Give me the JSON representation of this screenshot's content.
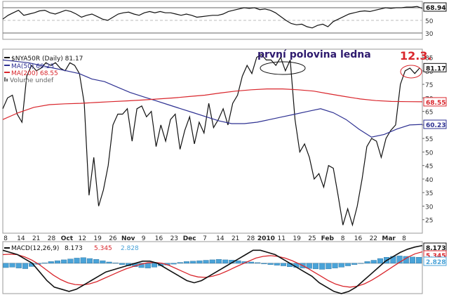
{
  "chart_data": [
    {
      "panel": "rsi",
      "type": "line",
      "last_value": "68.94",
      "y_ticks": [
        70,
        50,
        30
      ],
      "ylim": [
        20,
        80
      ],
      "series": [
        {
          "color": "#111111",
          "values": [
            52,
            58,
            62,
            66,
            58,
            60,
            62,
            65,
            66,
            62,
            60,
            63,
            66,
            64,
            60,
            55,
            58,
            60,
            56,
            52,
            50,
            55,
            60,
            62,
            63,
            60,
            58,
            62,
            64,
            62,
            64,
            62,
            62,
            60,
            58,
            60,
            58,
            55,
            56,
            57,
            58,
            58,
            60,
            64,
            66,
            68,
            70,
            69,
            70,
            67,
            68,
            66,
            62,
            56,
            50,
            45,
            43,
            44,
            40,
            38,
            42,
            44,
            40,
            48,
            52,
            56,
            60,
            62,
            64,
            65,
            64,
            66,
            68,
            70,
            69,
            70,
            70,
            71,
            71,
            72,
            69
          ]
        }
      ]
    },
    {
      "panel": "price",
      "type": "line",
      "legend": [
        {
          "label": "$NYA50R (Daily) 81.17",
          "color": "#111111"
        },
        {
          "label": "MA(50) 60.23",
          "color": "#2e3192"
        },
        {
          "label": "MA(200) 68.55",
          "color": "#d9262c"
        },
        {
          "label": "Volume undef",
          "color": "#666666"
        }
      ],
      "ylim": [
        20,
        88
      ],
      "y_ticks": [
        85,
        80,
        75,
        70,
        65,
        60,
        55,
        50,
        45,
        40,
        35,
        30,
        25
      ],
      "x_ticks": [
        "8",
        "14",
        "21",
        "28",
        "Oct",
        "12",
        "19",
        "26",
        "Nov",
        "9",
        "16",
        "23",
        "Dec",
        "7",
        "14",
        "21",
        "28",
        "2010",
        "11",
        "19",
        "25",
        "Feb",
        "8",
        "16",
        "22",
        "Mar",
        "8"
      ],
      "price_tags": [
        {
          "text": "81.17",
          "value": 81.17,
          "color": "#111111",
          "fill": "#ffffff"
        },
        {
          "text": "68.55",
          "value": 68.55,
          "color": "#d9262c",
          "fill": "#ffffff"
        },
        {
          "text": "60.23",
          "value": 60.23,
          "color": "#2e3192",
          "fill": "#ffffff"
        }
      ],
      "series": [
        {
          "name": "$NYA50R",
          "color": "#111111",
          "values": [
            66,
            70,
            71,
            64,
            61,
            78,
            82,
            80,
            81,
            83,
            82,
            83,
            81,
            80,
            83,
            82,
            79,
            68,
            34,
            48,
            30,
            36,
            45,
            60,
            64,
            64,
            66,
            54,
            66,
            67,
            63,
            65,
            52,
            60,
            54,
            62,
            64,
            51,
            58,
            63,
            53,
            61,
            57,
            68,
            59,
            62,
            66,
            60,
            68,
            71,
            78,
            82,
            79,
            85,
            86,
            84,
            84,
            82,
            85,
            80,
            84,
            62,
            50,
            53,
            48,
            40,
            42,
            37,
            45,
            44,
            34,
            23,
            29,
            23,
            30,
            40,
            52,
            55,
            54,
            48,
            55,
            58,
            60,
            75,
            80,
            81,
            79,
            81
          ]
        },
        {
          "name": "MA(50)",
          "color": "#2e3192",
          "values": [
            84,
            83.5,
            83,
            82,
            81,
            80,
            79,
            77,
            76,
            74,
            72,
            70.5,
            69,
            67.5,
            66,
            64.5,
            63,
            61.5,
            60.5,
            60.5,
            61,
            62,
            63,
            64,
            65,
            66,
            64.5,
            62,
            58.5,
            55.5,
            56.5,
            58.5,
            60,
            60.2
          ]
        },
        {
          "name": "MA(200)",
          "color": "#d9262c",
          "values": [
            62,
            64.5,
            66.5,
            67.5,
            67.8,
            68,
            68.3,
            68.6,
            68.9,
            69.2,
            69.6,
            70,
            70.5,
            71,
            71.8,
            72.5,
            73,
            73.3,
            73.3,
            73,
            72.5,
            71.5,
            70.5,
            69.6,
            69,
            68.7,
            68.6,
            68.55
          ]
        }
      ],
      "annotations": [
        {
          "text": "první polovina ledna",
          "color": "#2e1a6e"
        },
        {
          "text": "12.3.",
          "color": "#d9262c"
        }
      ]
    },
    {
      "panel": "macd",
      "type": "line",
      "legend": [
        {
          "label": "MACD(12,26,9)",
          "color": "#111111"
        },
        {
          "label": "8.173",
          "color": "#111111"
        },
        {
          "label": "5.345",
          "color": "#d9262c"
        },
        {
          "label": "2.828",
          "color": "#4aa3d8"
        }
      ],
      "price_tags": [
        {
          "text": "8.173",
          "color": "#111111"
        },
        {
          "text": "5.345",
          "color": "#d9262c"
        },
        {
          "text": "2.828",
          "color": "#4aa3d8"
        }
      ],
      "ylim": [
        -14,
        10
      ],
      "histogram": [
        -2,
        -1.8,
        -2.2,
        -2.5,
        -1.5,
        -0.5,
        0.2,
        0.8,
        1.2,
        1.6,
        2,
        2.4,
        2.6,
        2.2,
        1.8,
        1.2,
        0.6,
        0.2,
        -0.6,
        -1.2,
        -1.6,
        -2,
        -2.2,
        -1.8,
        -1.2,
        -0.8,
        -0.4,
        0.4,
        0.8,
        1,
        1.2,
        1.4,
        1.6,
        1.8,
        1.6,
        1.5,
        1.2,
        0.8,
        0.6,
        0.3,
        -0.3,
        -0.6,
        -0.9,
        -1.2,
        -1.6,
        -1.9,
        -2.2,
        -2.4,
        -2.6,
        -2.8,
        -2.6,
        -2.2,
        -1.8,
        -1.2,
        -0.6,
        0,
        0.8,
        1.4,
        2.2,
        2.8,
        3.2,
        3.4,
        3.2,
        2.9,
        2.8
      ],
      "series": [
        {
          "name": "MACD",
          "color": "#111111",
          "values": [
            6,
            5,
            4,
            2,
            0,
            -4,
            -8,
            -11,
            -12,
            -13,
            -12,
            -10,
            -8,
            -6,
            -4,
            -3,
            -2,
            -1,
            0,
            1,
            1,
            0,
            -2,
            -4,
            -6,
            -8,
            -9,
            -8,
            -6,
            -4,
            -2,
            0,
            2,
            4,
            6,
            6,
            5,
            4,
            2,
            0,
            -2,
            -4,
            -6,
            -9,
            -11,
            -13,
            -14,
            -13,
            -11,
            -8,
            -5,
            -2,
            1,
            3,
            5,
            6.5,
            7.5,
            8.2
          ]
        },
        {
          "name": "Signal",
          "color": "#d9262c",
          "values": [
            4,
            4.2,
            4,
            3,
            1.5,
            -0.5,
            -3,
            -5.5,
            -7.5,
            -9,
            -9.8,
            -10,
            -9.5,
            -8.5,
            -7,
            -5.5,
            -4,
            -2.6,
            -1.5,
            -0.5,
            0.2,
            0.4,
            0,
            -1,
            -2.5,
            -4,
            -5.5,
            -6.3,
            -6.5,
            -6,
            -5,
            -3.6,
            -2,
            -0.5,
            1,
            2.4,
            3.2,
            3.5,
            3.2,
            2.4,
            1.2,
            -0.3,
            -2,
            -4,
            -6,
            -8,
            -9.6,
            -10.6,
            -11,
            -10.6,
            -9.5,
            -7.8,
            -5.8,
            -3.6,
            -1.4,
            0.8,
            2.8,
            4.4,
            5.3
          ]
        }
      ]
    }
  ]
}
